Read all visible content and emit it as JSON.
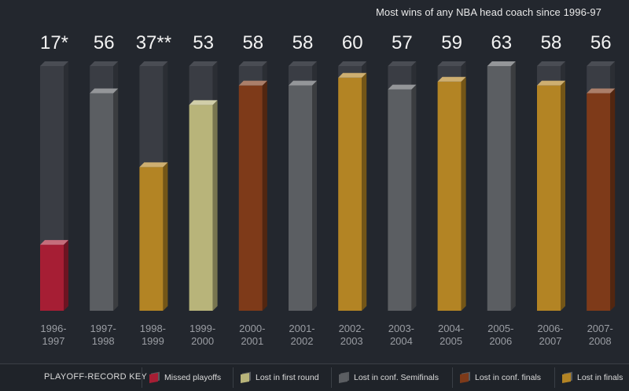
{
  "subtitle": "Most wins of any NBA head coach since 1996-97",
  "colors": {
    "background": "#23272e",
    "missed_playoffs": "#a61e34",
    "lost_first_round": "#b8b47a",
    "lost_conf_semifinals": "#5b5e62",
    "lost_conf_finals": "#7e3a19",
    "lost_finals": "#b38424",
    "track": "#3a3d44"
  },
  "chart_data": {
    "type": "bar",
    "categories": [
      "1996-\n1997",
      "1997-\n1998",
      "1998-\n1999",
      "1999-\n2000",
      "2000-\n2001",
      "2001-\n2002",
      "2002-\n2003",
      "2003-\n2004",
      "2004-\n2005",
      "2005-\n2006",
      "2006-\n2007",
      "2007-\n2008"
    ],
    "category_lines": [
      [
        "1996-",
        "1997"
      ],
      [
        "1997-",
        "1998"
      ],
      [
        "1998-",
        "1999"
      ],
      [
        "1999-",
        "2000"
      ],
      [
        "2000-",
        "2001"
      ],
      [
        "2001-",
        "2002"
      ],
      [
        "2002-",
        "2003"
      ],
      [
        "2003-",
        "2004"
      ],
      [
        "2004-",
        "2005"
      ],
      [
        "2005-",
        "2006"
      ],
      [
        "2006-",
        "2007"
      ],
      [
        "2007-",
        "2008"
      ]
    ],
    "values": [
      17,
      56,
      37,
      53,
      58,
      58,
      60,
      57,
      59,
      63,
      58,
      56
    ],
    "value_labels": [
      "17*",
      "56",
      "37**",
      "53",
      "58",
      "58",
      "60",
      "57",
      "59",
      "63",
      "58",
      "56"
    ],
    "outcomes": [
      "missed_playoffs",
      "lost_conf_semifinals",
      "lost_finals",
      "lost_first_round",
      "lost_conf_finals",
      "lost_conf_semifinals",
      "lost_finals",
      "lost_conf_semifinals",
      "lost_finals",
      "lost_conf_semifinals",
      "lost_finals",
      "lost_conf_finals"
    ],
    "ylim": [
      0,
      63
    ],
    "title": "",
    "xlabel": "",
    "ylabel": "",
    "grid": false,
    "legend_position": "bottom"
  },
  "key": {
    "title": "PLAYOFF-RECORD KEY",
    "items": [
      {
        "id": "missed_playoffs",
        "label": "Missed playoffs"
      },
      {
        "id": "lost_first_round",
        "label": "Lost in first round"
      },
      {
        "id": "lost_conf_semifinals",
        "label": "Lost in conf. Semifinals"
      },
      {
        "id": "lost_conf_finals",
        "label": "Lost in conf. finals"
      },
      {
        "id": "lost_finals",
        "label": "Lost in finals"
      }
    ]
  }
}
